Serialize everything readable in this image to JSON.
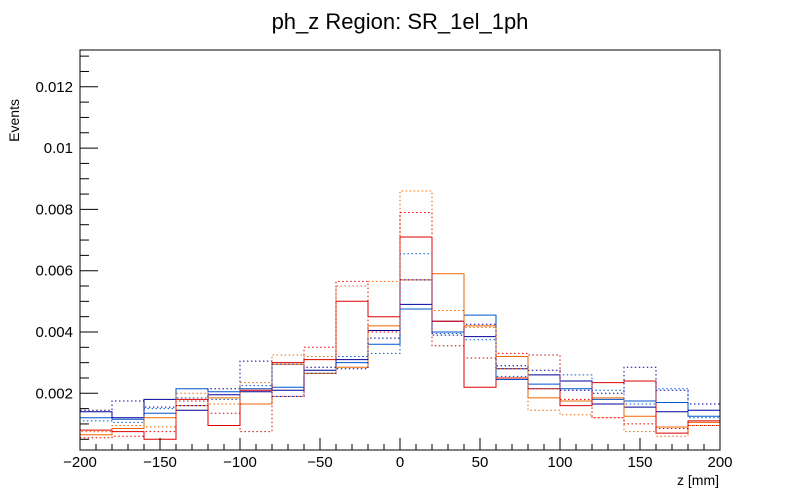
{
  "chart_data": {
    "type": "line",
    "title": "ph_z Region: SR_1el_1ph",
    "xlabel": "z [mm]",
    "ylabel": "Events",
    "xlim": [
      -200,
      200
    ],
    "ylim": [
      0.00015,
      0.0132
    ],
    "grid": false,
    "x_ticks": [
      -200,
      -150,
      -100,
      -50,
      0,
      50,
      100,
      150,
      200
    ],
    "x_tick_labels": [
      "−200",
      "−150",
      "−100",
      "−50",
      "0",
      "50",
      "100",
      "150",
      "200"
    ],
    "y_ticks": [
      0.002,
      0.004,
      0.006,
      0.008,
      0.01,
      0.012
    ],
    "y_tick_labels": [
      "0.002",
      "0.004",
      "0.006",
      "0.008",
      "0.01",
      "0.012"
    ],
    "bin_edges": [
      -200,
      -180,
      -160,
      -140,
      -120,
      -100,
      -80,
      -60,
      -40,
      -20,
      0,
      20,
      40,
      60,
      80,
      100,
      120,
      140,
      160,
      180,
      200
    ],
    "series": [
      {
        "style": "solid",
        "color": "#0055cc",
        "values": [
          0.0012,
          0.00115,
          0.00135,
          0.00215,
          0.00205,
          0.00215,
          0.0022,
          0.00265,
          0.003,
          0.0036,
          0.00475,
          0.004,
          0.00455,
          0.00245,
          0.0023,
          0.00215,
          0.0018,
          0.00175,
          0.0017,
          0.00125
        ]
      },
      {
        "style": "solid",
        "color": "#000099",
        "values": [
          0.0014,
          0.0012,
          0.0018,
          0.00145,
          0.00195,
          0.00205,
          0.0021,
          0.00275,
          0.0031,
          0.00405,
          0.0049,
          0.00435,
          0.00385,
          0.0028,
          0.0026,
          0.0024,
          0.00165,
          0.00155,
          0.0014,
          0.00145
        ]
      },
      {
        "style": "solid",
        "color": "#ee6600",
        "values": [
          0.00065,
          0.00085,
          0.0012,
          0.0016,
          0.00185,
          0.00165,
          0.00295,
          0.00265,
          0.00285,
          0.0042,
          0.0057,
          0.0059,
          0.0042,
          0.0032,
          0.00185,
          0.00175,
          0.00185,
          0.00125,
          0.0009,
          0.00105
        ]
      },
      {
        "style": "solid",
        "color": "#dd0000",
        "values": [
          0.0008,
          0.00075,
          0.0005,
          0.0018,
          0.00095,
          0.0021,
          0.003,
          0.0031,
          0.005,
          0.0045,
          0.0071,
          0.00435,
          0.0022,
          0.0025,
          0.00215,
          0.0016,
          0.00235,
          0.0024,
          0.0007,
          0.0011
        ]
      },
      {
        "style": "dotted",
        "color": "#000099",
        "values": [
          0.00145,
          0.00175,
          0.00155,
          0.0016,
          0.00215,
          0.00305,
          0.0019,
          0.00285,
          0.0028,
          0.0038,
          0.0057,
          0.0039,
          0.00425,
          0.0029,
          0.00275,
          0.0021,
          0.002,
          0.00285,
          0.0021,
          0.00165
        ]
      },
      {
        "style": "dotted",
        "color": "#0055cc",
        "values": [
          0.0011,
          0.00105,
          0.0015,
          0.00185,
          0.0018,
          0.00225,
          0.00295,
          0.00265,
          0.0032,
          0.0033,
          0.00655,
          0.00395,
          0.00375,
          0.00255,
          0.00215,
          0.0026,
          0.0021,
          0.00165,
          0.00215,
          0.0012
        ]
      },
      {
        "style": "dotted",
        "color": "#ee6600",
        "values": [
          0.00075,
          0.00095,
          0.0009,
          0.002,
          0.00165,
          0.00235,
          0.00325,
          0.0032,
          0.0055,
          0.00565,
          0.0086,
          0.0047,
          0.00415,
          0.0028,
          0.00145,
          0.0013,
          0.0012,
          0.00075,
          0.0006,
          0.00095
        ]
      },
      {
        "style": "dotted",
        "color": "#dd0000",
        "values": [
          0.00055,
          0.0006,
          0.00075,
          0.00175,
          0.00135,
          0.00075,
          0.0019,
          0.0035,
          0.00565,
          0.004,
          0.0079,
          0.00355,
          0.00315,
          0.0033,
          0.00325,
          0.0018,
          0.0012,
          0.001,
          0.00085,
          0.00095
        ]
      }
    ]
  }
}
